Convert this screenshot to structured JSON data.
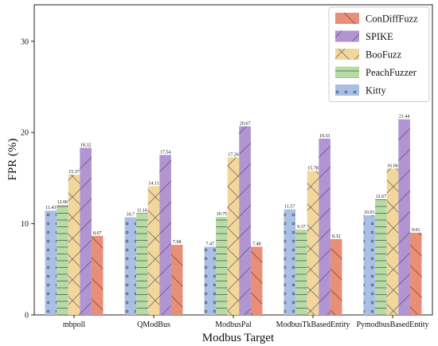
{
  "chart_data": {
    "type": "bar",
    "xlabel": "Modbus Target",
    "ylabel": "FPR (%)",
    "ylim": [
      0,
      34
    ],
    "yticks": [
      0,
      10,
      20,
      30
    ],
    "grid": false,
    "legend_position": "top-right",
    "categories": [
      "mbpoll",
      "QModBus",
      "ModbusPal",
      "ModbusTkBasedEntity",
      "PymodbusBasedEntity"
    ],
    "series": [
      {
        "name": "Kitty",
        "values": [
          11.43,
          10.7,
          7.47,
          11.57,
          10.91
        ],
        "labels": [
          "11.43",
          "10.7",
          "7.47",
          "11.57",
          "10.91"
        ],
        "color": "#a8bfe6",
        "pattern": "dots"
      },
      {
        "name": "PeachFuzzer",
        "values": [
          12.06,
          11.16,
          10.75,
          9.37,
          12.67
        ],
        "labels": [
          "12.06",
          "11.16",
          "10.75",
          "9.37",
          "12.67"
        ],
        "color": "#b6dca3",
        "pattern": "horizontal-lines"
      },
      {
        "name": "BooFuzz",
        "values": [
          15.37,
          14.11,
          17.26,
          15.78,
          16.06
        ],
        "labels": [
          "15.37",
          "14.11",
          "17.26",
          "15.78",
          "16.06"
        ],
        "color": "#f3d79a",
        "pattern": "crosshatch"
      },
      {
        "name": "SPIKE",
        "values": [
          18.32,
          17.54,
          20.67,
          19.33,
          21.44
        ],
        "labels": [
          "18.32",
          "17.54",
          "20.67",
          "19.33",
          "21.44"
        ],
        "color": "#b194d2",
        "pattern": "forward-slash"
      },
      {
        "name": "ConDiffFuzz",
        "values": [
          8.67,
          7.68,
          7.48,
          8.32,
          9.01
        ],
        "labels": [
          "8.67",
          "7.68",
          "7.48",
          "8.32",
          "9.01"
        ],
        "color": "#e88f78",
        "pattern": "back-slash"
      }
    ],
    "legend_order": [
      "ConDiffFuzz",
      "SPIKE",
      "BooFuzz",
      "PeachFuzzer",
      "Kitty"
    ]
  }
}
